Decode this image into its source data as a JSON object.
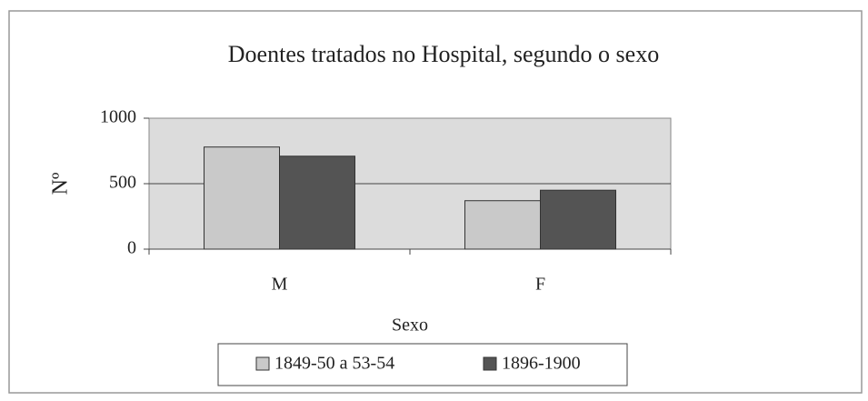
{
  "chart_data": {
    "type": "bar",
    "title": "Doentes tratados no Hospital, segundo o sexo",
    "x_label": "Sexo",
    "y_label": "Nº",
    "categories": [
      "M",
      "F"
    ],
    "series": [
      {
        "name": "1849-50 a 53-54",
        "color": "#c9c9c9",
        "values": [
          780,
          370
        ]
      },
      {
        "name": "1896-1900",
        "color": "#545454",
        "values": [
          710,
          450
        ]
      }
    ],
    "ylim": [
      0,
      1000
    ],
    "yticks": [
      0,
      500,
      1000
    ],
    "grid": true,
    "legend": "bottom"
  }
}
